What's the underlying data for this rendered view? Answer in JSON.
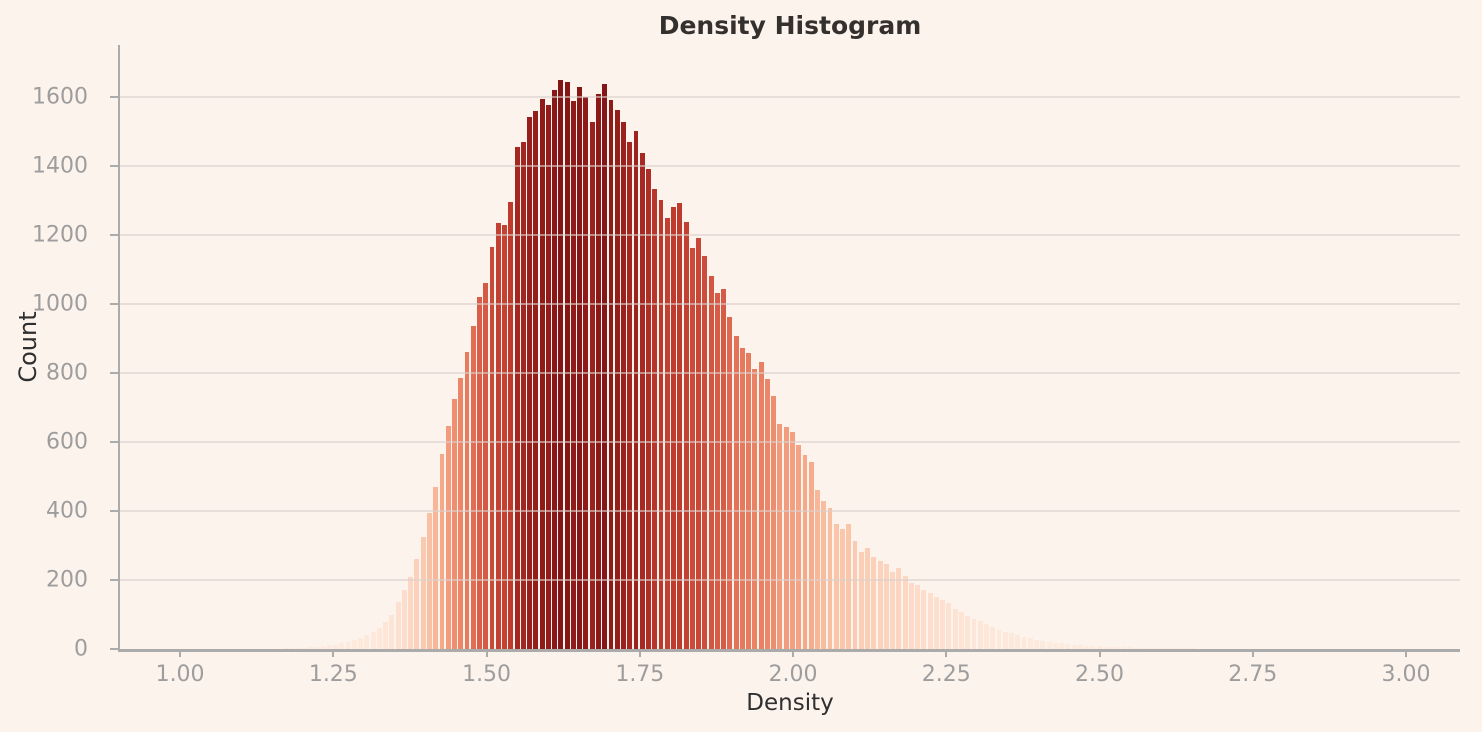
{
  "style": {
    "background": "#fdf3ed",
    "spine_color": "#ababab",
    "tick_color": "#ababab",
    "gridline_color": "rgba(219,209,204,0.6)",
    "tick_label_color": "#9d9d9d",
    "axis_label_color": "#2f2f2f",
    "title_color": "#33302d"
  },
  "chart_data": {
    "type": "bar",
    "subtype": "histogram",
    "title": "Density Histogram",
    "xlabel": "Density",
    "ylabel": "Count",
    "xlim": [
      0.902,
      3.088
    ],
    "ylim": [
      0,
      1750
    ],
    "grid": "horizontal-only",
    "legend": "none",
    "x_tick_values": [
      1.0,
      1.25,
      1.5,
      1.75,
      2.0,
      2.25,
      2.5,
      2.75,
      3.0
    ],
    "x_tick_labels": [
      "1.00",
      "1.25",
      "1.50",
      "1.75",
      "2.00",
      "2.25",
      "2.50",
      "2.75",
      "3.00"
    ],
    "y_tick_values": [
      0,
      200,
      400,
      600,
      800,
      1000,
      1200,
      1400,
      1600
    ],
    "y_tick_labels": [
      "0",
      "200",
      "400",
      "600",
      "800",
      "1000",
      "1200",
      "1400",
      "1600"
    ],
    "bins": {
      "start": 1.168,
      "width": 0.01021,
      "count": 150
    },
    "counts": [
      2,
      3,
      3,
      4,
      6,
      7,
      9,
      11,
      13,
      16,
      20,
      25,
      31,
      40,
      50,
      62,
      78,
      100,
      135,
      170,
      210,
      262,
      325,
      395,
      468,
      565,
      645,
      725,
      785,
      860,
      935,
      1020,
      1060,
      1165,
      1235,
      1228,
      1295,
      1455,
      1470,
      1540,
      1560,
      1595,
      1575,
      1620,
      1650,
      1642,
      1588,
      1628,
      1598,
      1528,
      1608,
      1638,
      1592,
      1562,
      1528,
      1468,
      1502,
      1438,
      1392,
      1332,
      1302,
      1248,
      1282,
      1292,
      1238,
      1162,
      1192,
      1140,
      1082,
      1032,
      1042,
      962,
      908,
      872,
      858,
      812,
      832,
      782,
      732,
      652,
      642,
      628,
      592,
      562,
      542,
      462,
      428,
      408,
      362,
      348,
      362,
      312,
      282,
      292,
      268,
      255,
      246,
      222,
      236,
      212,
      192,
      186,
      172,
      162,
      152,
      142,
      132,
      116,
      106,
      96,
      86,
      80,
      72,
      63,
      56,
      50,
      45,
      40,
      35,
      31,
      27,
      23,
      20,
      18,
      16,
      14,
      12,
      11,
      10,
      9,
      8,
      7,
      7,
      6,
      5,
      5,
      4,
      4,
      3,
      3,
      3,
      2,
      2,
      2,
      2,
      2,
      1,
      1,
      1,
      1
    ],
    "peak_count": 1650,
    "colormap": {
      "name": "Reds-sequential (bar color maps to bar count)",
      "stops": [
        {
          "count": 0,
          "color": "#fdece0"
        },
        {
          "count": 120,
          "color": "#fde3d3"
        },
        {
          "count": 250,
          "color": "#fbd3bd"
        },
        {
          "count": 400,
          "color": "#f9c0a2"
        },
        {
          "count": 550,
          "color": "#f6ab8b"
        },
        {
          "count": 700,
          "color": "#f09375"
        },
        {
          "count": 850,
          "color": "#e87c60"
        },
        {
          "count": 1000,
          "color": "#db624c"
        },
        {
          "count": 1150,
          "color": "#cc4c3b"
        },
        {
          "count": 1300,
          "color": "#bc392c"
        },
        {
          "count": 1450,
          "color": "#a52822"
        },
        {
          "count": 1580,
          "color": "#921c1a"
        },
        {
          "count": 1650,
          "color": "#821516"
        }
      ]
    }
  }
}
